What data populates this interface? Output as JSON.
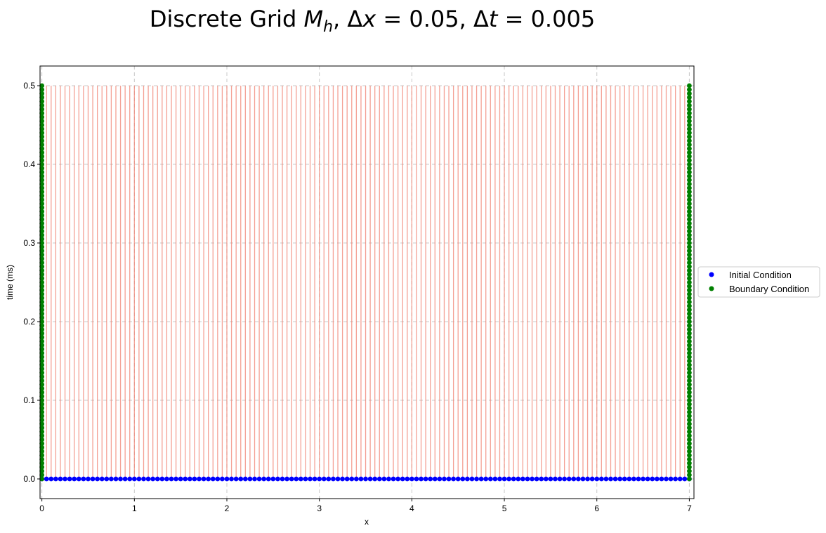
{
  "chart_data": {
    "type": "scatter",
    "title": {
      "prefix": "Discrete Grid ",
      "M": "M",
      "h": "h",
      "sep1": ",  Δ",
      "dx_var": "x",
      "eq1": " = 0.05,  Δ",
      "dt_var": "t",
      "eq2": " = 0.005"
    },
    "xlabel": "x",
    "ylabel": "time (ms)",
    "xlim": [
      -0.02,
      7.05
    ],
    "ylim": [
      -0.025,
      0.525
    ],
    "xticks": [
      "0",
      "1",
      "2",
      "3",
      "4",
      "5",
      "6",
      "7"
    ],
    "yticks": [
      "0.0",
      "0.1",
      "0.2",
      "0.3",
      "0.4",
      "0.5"
    ],
    "grid": true,
    "grid_spacing": {
      "dx": 0.05,
      "dt": 0.005,
      "x_min": 0,
      "x_max": 7,
      "t_min": 0,
      "t_max": 0.5
    },
    "legend_position": "outside-right",
    "colors": {
      "interior": "#f08070",
      "initial": "#0000ff",
      "boundary": "#008000",
      "grid": "#c8c8c8"
    },
    "series": [
      {
        "name": "Initial Condition",
        "description_x": "0 to 7 step 0.05",
        "t": 0.0
      },
      {
        "name": "Boundary Condition",
        "x_values": [
          0,
          7
        ],
        "description_t": "0 to 0.5 step 0.005"
      }
    ]
  }
}
